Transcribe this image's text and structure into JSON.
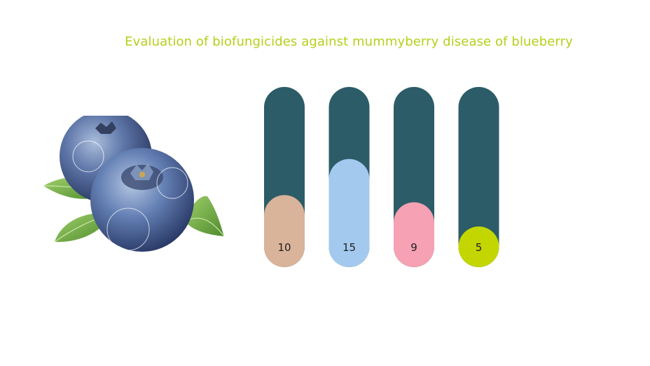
{
  "title": "Evaluation of biofungicides against mummyberry disease of blueberry",
  "colors": {
    "title": "#b6cf1a",
    "track": "#2c5c67"
  },
  "chart_data": {
    "type": "bar",
    "title": "Evaluation of biofungicides against mummyberry disease of blueberry",
    "xlabel": "",
    "ylabel": "",
    "ylim": [
      0,
      25
    ],
    "categories": [
      "",
      "",
      "",
      ""
    ],
    "values": [
      10,
      15,
      9,
      5
    ],
    "labels": [
      "10",
      "15",
      "9",
      "5"
    ],
    "colors": [
      "#d9b39a",
      "#a3c9ee",
      "#f6a1b4",
      "#c4d600"
    ],
    "grid": false,
    "legend": "none"
  },
  "illustration": {
    "icon": "blueberries-with-leaves-image"
  }
}
